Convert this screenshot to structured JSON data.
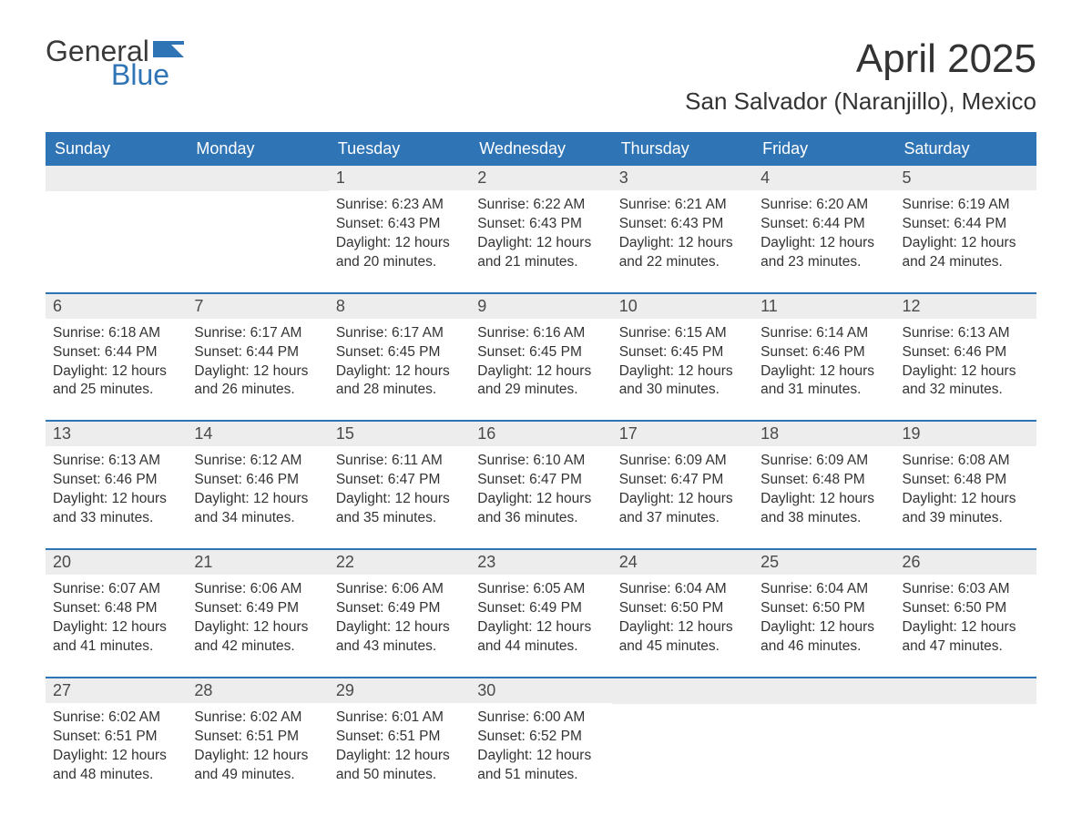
{
  "brand": {
    "general": "General",
    "blue": "Blue",
    "flag_color": "#2f74b5"
  },
  "title": "April 2025",
  "location": "San Salvador (Naranjillo), Mexico",
  "colors": {
    "header_bg": "#2f74b5",
    "header_text": "#ffffff",
    "daynum_bg": "#ededed",
    "text": "#333333",
    "week_border": "#2f74b5"
  },
  "font": {
    "family": "Arial",
    "title_size_pt": 33,
    "location_size_pt": 20,
    "header_size_pt": 14,
    "body_size_pt": 12
  },
  "day_headers": [
    "Sunday",
    "Monday",
    "Tuesday",
    "Wednesday",
    "Thursday",
    "Friday",
    "Saturday"
  ],
  "labels": {
    "sunrise": "Sunrise:",
    "sunset": "Sunset:",
    "daylight": "Daylight:"
  },
  "weeks": [
    [
      null,
      null,
      {
        "n": "1",
        "sr": "6:23 AM",
        "ss": "6:43 PM",
        "dl": "12 hours and 20 minutes."
      },
      {
        "n": "2",
        "sr": "6:22 AM",
        "ss": "6:43 PM",
        "dl": "12 hours and 21 minutes."
      },
      {
        "n": "3",
        "sr": "6:21 AM",
        "ss": "6:43 PM",
        "dl": "12 hours and 22 minutes."
      },
      {
        "n": "4",
        "sr": "6:20 AM",
        "ss": "6:44 PM",
        "dl": "12 hours and 23 minutes."
      },
      {
        "n": "5",
        "sr": "6:19 AM",
        "ss": "6:44 PM",
        "dl": "12 hours and 24 minutes."
      }
    ],
    [
      {
        "n": "6",
        "sr": "6:18 AM",
        "ss": "6:44 PM",
        "dl": "12 hours and 25 minutes."
      },
      {
        "n": "7",
        "sr": "6:17 AM",
        "ss": "6:44 PM",
        "dl": "12 hours and 26 minutes."
      },
      {
        "n": "8",
        "sr": "6:17 AM",
        "ss": "6:45 PM",
        "dl": "12 hours and 28 minutes."
      },
      {
        "n": "9",
        "sr": "6:16 AM",
        "ss": "6:45 PM",
        "dl": "12 hours and 29 minutes."
      },
      {
        "n": "10",
        "sr": "6:15 AM",
        "ss": "6:45 PM",
        "dl": "12 hours and 30 minutes."
      },
      {
        "n": "11",
        "sr": "6:14 AM",
        "ss": "6:46 PM",
        "dl": "12 hours and 31 minutes."
      },
      {
        "n": "12",
        "sr": "6:13 AM",
        "ss": "6:46 PM",
        "dl": "12 hours and 32 minutes."
      }
    ],
    [
      {
        "n": "13",
        "sr": "6:13 AM",
        "ss": "6:46 PM",
        "dl": "12 hours and 33 minutes."
      },
      {
        "n": "14",
        "sr": "6:12 AM",
        "ss": "6:46 PM",
        "dl": "12 hours and 34 minutes."
      },
      {
        "n": "15",
        "sr": "6:11 AM",
        "ss": "6:47 PM",
        "dl": "12 hours and 35 minutes."
      },
      {
        "n": "16",
        "sr": "6:10 AM",
        "ss": "6:47 PM",
        "dl": "12 hours and 36 minutes."
      },
      {
        "n": "17",
        "sr": "6:09 AM",
        "ss": "6:47 PM",
        "dl": "12 hours and 37 minutes."
      },
      {
        "n": "18",
        "sr": "6:09 AM",
        "ss": "6:48 PM",
        "dl": "12 hours and 38 minutes."
      },
      {
        "n": "19",
        "sr": "6:08 AM",
        "ss": "6:48 PM",
        "dl": "12 hours and 39 minutes."
      }
    ],
    [
      {
        "n": "20",
        "sr": "6:07 AM",
        "ss": "6:48 PM",
        "dl": "12 hours and 41 minutes."
      },
      {
        "n": "21",
        "sr": "6:06 AM",
        "ss": "6:49 PM",
        "dl": "12 hours and 42 minutes."
      },
      {
        "n": "22",
        "sr": "6:06 AM",
        "ss": "6:49 PM",
        "dl": "12 hours and 43 minutes."
      },
      {
        "n": "23",
        "sr": "6:05 AM",
        "ss": "6:49 PM",
        "dl": "12 hours and 44 minutes."
      },
      {
        "n": "24",
        "sr": "6:04 AM",
        "ss": "6:50 PM",
        "dl": "12 hours and 45 minutes."
      },
      {
        "n": "25",
        "sr": "6:04 AM",
        "ss": "6:50 PM",
        "dl": "12 hours and 46 minutes."
      },
      {
        "n": "26",
        "sr": "6:03 AM",
        "ss": "6:50 PM",
        "dl": "12 hours and 47 minutes."
      }
    ],
    [
      {
        "n": "27",
        "sr": "6:02 AM",
        "ss": "6:51 PM",
        "dl": "12 hours and 48 minutes."
      },
      {
        "n": "28",
        "sr": "6:02 AM",
        "ss": "6:51 PM",
        "dl": "12 hours and 49 minutes."
      },
      {
        "n": "29",
        "sr": "6:01 AM",
        "ss": "6:51 PM",
        "dl": "12 hours and 50 minutes."
      },
      {
        "n": "30",
        "sr": "6:00 AM",
        "ss": "6:52 PM",
        "dl": "12 hours and 51 minutes."
      },
      null,
      null,
      null
    ]
  ]
}
